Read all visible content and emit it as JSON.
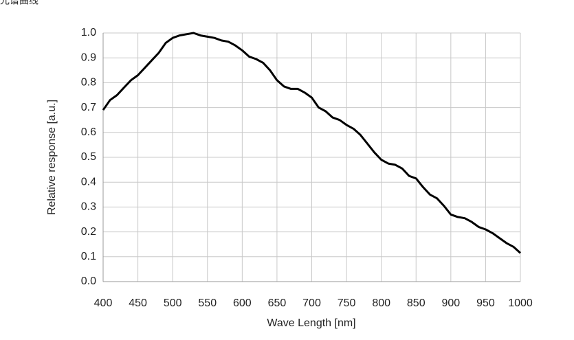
{
  "page_title": "光谱曲线",
  "chart_data": {
    "type": "line",
    "xlabel": "Wave Length [nm]",
    "ylabel": "Relative response [a.u.]",
    "x": [
      400,
      410,
      420,
      430,
      440,
      450,
      460,
      470,
      480,
      490,
      500,
      510,
      520,
      530,
      540,
      550,
      560,
      570,
      580,
      590,
      600,
      610,
      620,
      630,
      640,
      650,
      660,
      670,
      680,
      690,
      700,
      710,
      720,
      730,
      740,
      750,
      760,
      770,
      780,
      790,
      800,
      810,
      820,
      830,
      840,
      850,
      860,
      870,
      880,
      890,
      900,
      910,
      920,
      930,
      940,
      950,
      960,
      970,
      980,
      990,
      1000
    ],
    "values": [
      0.69,
      0.73,
      0.75,
      0.78,
      0.81,
      0.83,
      0.86,
      0.89,
      0.92,
      0.96,
      0.98,
      0.99,
      0.995,
      1.0,
      0.99,
      0.985,
      0.98,
      0.97,
      0.965,
      0.95,
      0.93,
      0.905,
      0.895,
      0.88,
      0.85,
      0.81,
      0.785,
      0.775,
      0.775,
      0.76,
      0.74,
      0.7,
      0.685,
      0.66,
      0.65,
      0.63,
      0.615,
      0.59,
      0.555,
      0.52,
      0.49,
      0.475,
      0.47,
      0.455,
      0.425,
      0.415,
      0.38,
      0.35,
      0.335,
      0.305,
      0.27,
      0.26,
      0.255,
      0.24,
      0.22,
      0.21,
      0.195,
      0.175,
      0.155,
      0.14,
      0.115
    ],
    "color": "#000000",
    "xlim": [
      400,
      1000
    ],
    "xticks": [
      400,
      450,
      500,
      550,
      600,
      650,
      700,
      750,
      800,
      850,
      900,
      950,
      1000
    ],
    "ylim": [
      0,
      1
    ],
    "yticks": [
      {
        "value": 0,
        "label": "0.0"
      },
      0.1,
      0.2,
      0.3,
      0.4,
      0.5,
      0.6,
      0.7,
      0.8,
      0.9,
      {
        "value": 1,
        "label": "1.0"
      }
    ],
    "grid": true
  }
}
